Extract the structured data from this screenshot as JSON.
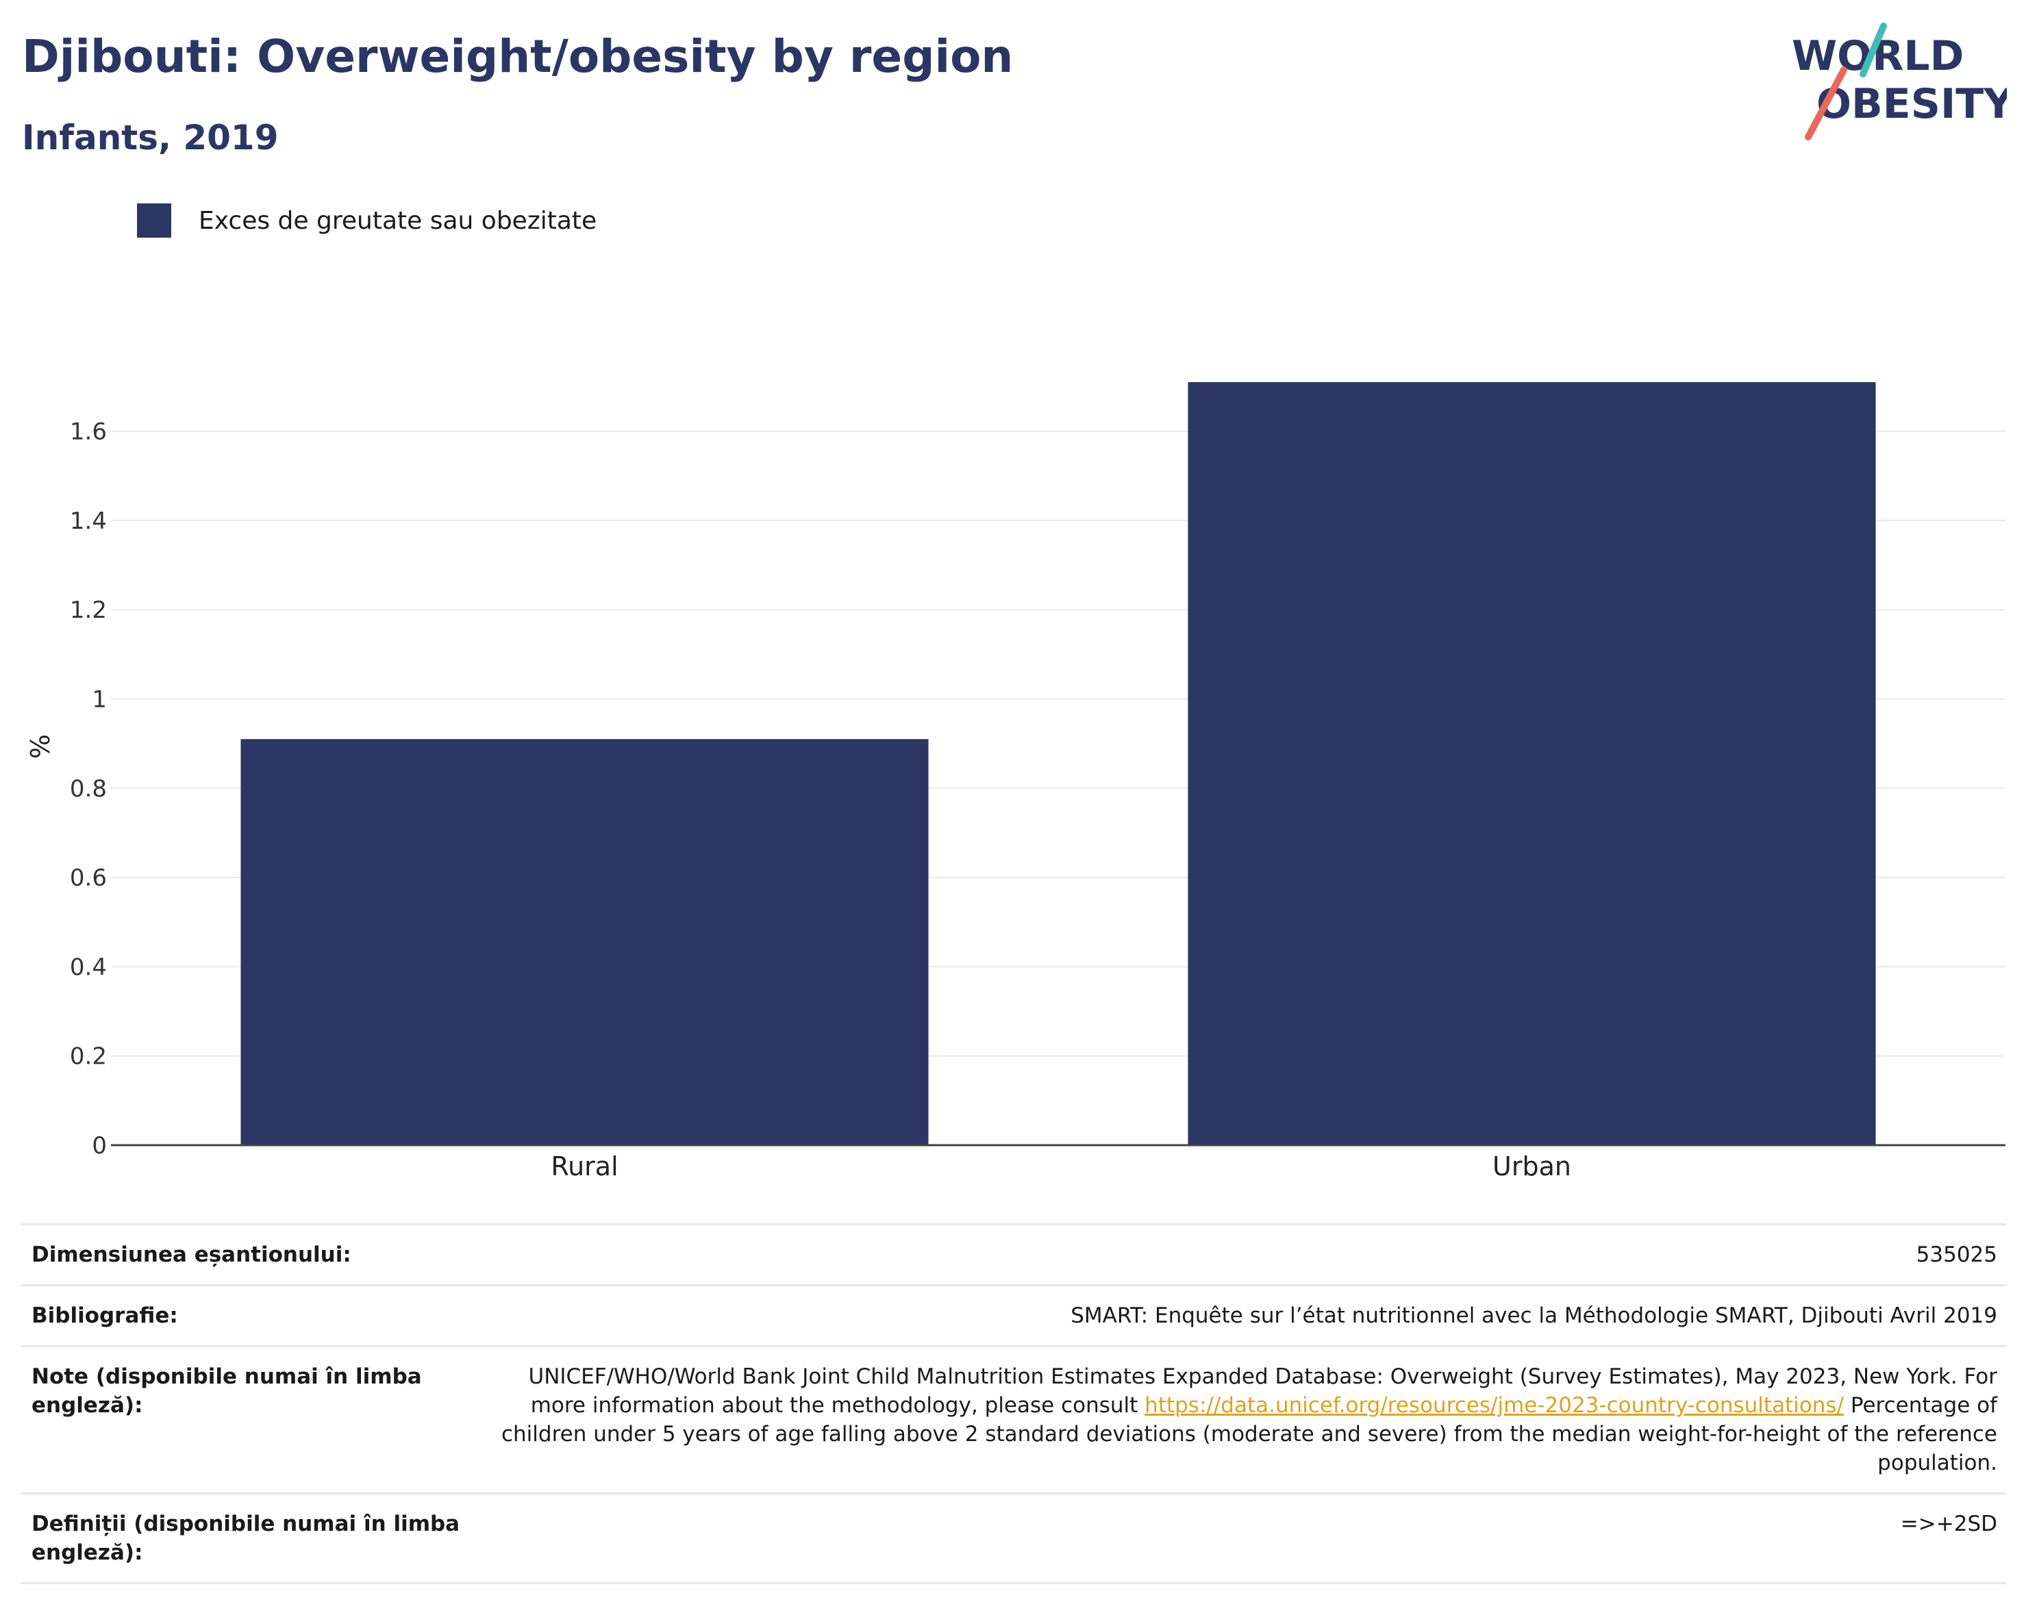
{
  "header": {
    "title": "Djibouti: Overweight/obesity by region",
    "subtitle": "Infants, 2019"
  },
  "logo": {
    "line1": "WORLD",
    "line2": "OBESITY",
    "teal": "#3fbcb6",
    "coral": "#e8685a",
    "navy": "#2b3664"
  },
  "chart_data": {
    "type": "bar",
    "categories": [
      "Rural",
      "Urban"
    ],
    "series": [
      {
        "name": "Exces de greutate sau obezitate",
        "values": [
          0.91,
          1.71
        ],
        "color": "#2b3664"
      }
    ],
    "ylabel": "%",
    "ylim": [
      0,
      1.7
    ],
    "yticks": [
      0,
      0.2,
      0.4,
      0.6,
      0.8,
      1,
      1.2,
      1.4,
      1.6
    ],
    "grid": true,
    "legend": "top-left"
  },
  "info": {
    "sample_label": "Dimensiunea eșantionului:",
    "sample_value": "535025",
    "biblio_label": "Bibliografie:",
    "biblio_value": "SMART: Enquête sur l’état nutritionnel avec la Méthodologie SMART, Djibouti Avril 2019",
    "notes_label": "Note (disponibile numai în limba engleză):",
    "notes_text1": "UNICEF/WHO/World Bank Joint Child Malnutrition Estimates Expanded Database: Overweight (Survey Estimates), May 2023, New York. For more information about the methodology, please consult",
    "notes_link": "https://data.unicef.org/resources/jme-2023-country-consultations/",
    "notes_text2": "Percentage of children under 5 years of age falling above 2 standard deviations (moderate and severe) from the median weight-for-height of the reference population.",
    "defs_label": "Definiții (disponibile numai în limba engleză):",
    "defs_value": "=>+2SD"
  }
}
